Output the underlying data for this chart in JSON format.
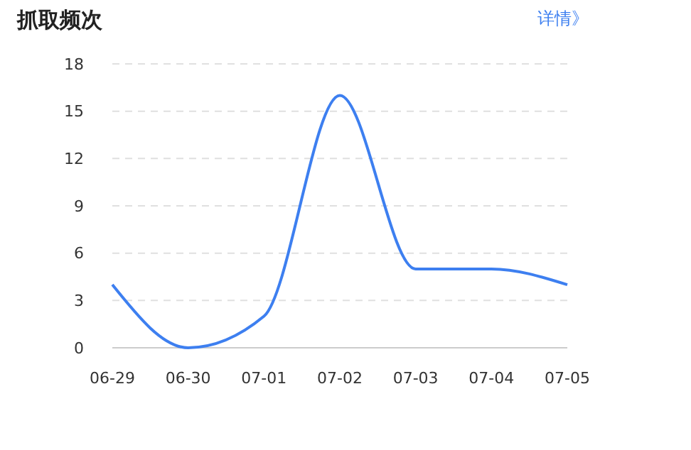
{
  "chart_data": {
    "type": "line",
    "title": "抓取频次",
    "annotations": [
      "详情》"
    ],
    "categories": [
      "06-29",
      "06-30",
      "07-01",
      "07-02",
      "07-03",
      "07-04",
      "07-05"
    ],
    "series": [
      {
        "color": "#3d7ff0",
        "values": [
          4,
          0,
          2,
          16,
          5,
          5,
          4
        ]
      }
    ],
    "ylim": [
      0,
      18
    ],
    "yticks": [
      0,
      3,
      6,
      9,
      12,
      15,
      18
    ],
    "grid": "y",
    "marker": "none",
    "line_style": "solid"
  }
}
